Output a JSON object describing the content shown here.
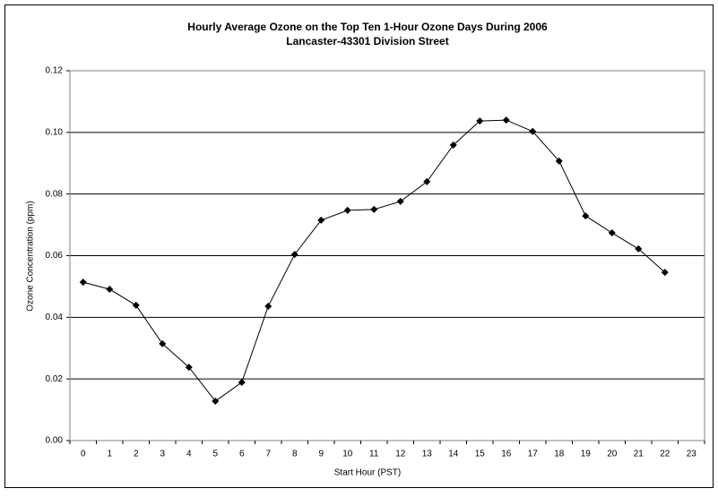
{
  "chart_data": {
    "type": "line",
    "title": "Hourly Average Ozone on the Top Ten 1-Hour Ozone Days During 2006",
    "subtitle": "Lancaster-43301 Division Street",
    "x_label": "Start Hour (PST)",
    "y_label": "Ozone Concentration (ppm)",
    "categories": [
      "0",
      "1",
      "2",
      "3",
      "4",
      "5",
      "6",
      "7",
      "8",
      "9",
      "10",
      "11",
      "12",
      "13",
      "14",
      "15",
      "16",
      "17",
      "18",
      "19",
      "20",
      "21",
      "22",
      "23"
    ],
    "values": [
      0.0514,
      0.0491,
      0.0439,
      0.0314,
      0.0238,
      0.0128,
      0.0189,
      0.0436,
      0.0604,
      0.0715,
      0.0747,
      0.075,
      0.0776,
      0.084,
      0.0959,
      0.1037,
      0.104,
      0.1003,
      0.0907,
      0.0729,
      0.0674,
      0.0622,
      0.0546,
      null
    ],
    "color": "#000000",
    "ylim": [
      0,
      0.12
    ],
    "yticks": [
      {
        "value": 0,
        "label": "0.00"
      },
      {
        "value": 0.02,
        "label": "0.02"
      },
      {
        "value": 0.04,
        "label": "0.04"
      },
      {
        "value": 0.06,
        "label": "0.06"
      },
      {
        "value": 0.08,
        "label": "0.08"
      },
      {
        "value": 0.1,
        "label": "0.10"
      },
      {
        "value": 0.12,
        "label": "0.12"
      }
    ],
    "grid": true
  }
}
